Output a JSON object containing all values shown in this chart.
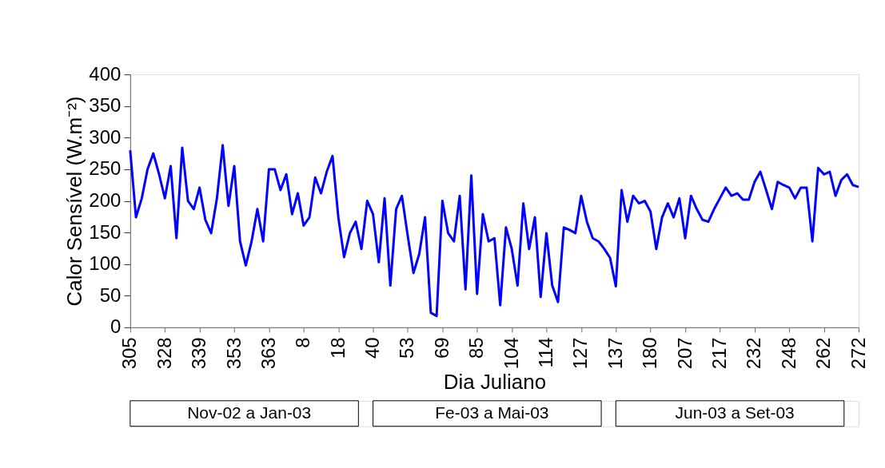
{
  "chart_data": {
    "type": "line",
    "xlabel": "Dia Juliano",
    "ylabel": "Calor Sensível (W.m⁻²)",
    "categories": [
      "305",
      null,
      null,
      null,
      null,
      null,
      "328",
      null,
      null,
      null,
      null,
      null,
      "339",
      null,
      null,
      null,
      null,
      null,
      "353",
      null,
      null,
      null,
      null,
      null,
      "363",
      null,
      null,
      null,
      null,
      null,
      "8",
      null,
      null,
      null,
      null,
      null,
      "18",
      null,
      null,
      null,
      null,
      null,
      "40",
      null,
      null,
      null,
      null,
      null,
      "53",
      null,
      null,
      null,
      null,
      null,
      "69",
      null,
      null,
      null,
      null,
      null,
      "85",
      null,
      null,
      null,
      null,
      null,
      "104",
      null,
      null,
      null,
      null,
      null,
      "114",
      null,
      null,
      null,
      null,
      null,
      "127",
      null,
      null,
      null,
      null,
      null,
      "137",
      null,
      null,
      null,
      null,
      null,
      "180",
      null,
      null,
      null,
      null,
      null,
      "207",
      null,
      null,
      null,
      null,
      null,
      "217",
      null,
      null,
      null,
      null,
      null,
      "232",
      null,
      null,
      null,
      null,
      null,
      "248",
      null,
      null,
      null,
      null,
      null,
      "262",
      null,
      null,
      null,
      null,
      null,
      "272"
    ],
    "series": [
      {
        "color": "#0000ff",
        "values": [
          280,
          174,
          204,
          250,
          275,
          242,
          204,
          255,
          141,
          284,
          200,
          187,
          221,
          170,
          149,
          204,
          288,
          192,
          255,
          136,
          98,
          136,
          187,
          136,
          250,
          250,
          217,
          242,
          179,
          212,
          161,
          174,
          237,
          212,
          246,
          271,
          174,
          111,
          149,
          167,
          124,
          200,
          179,
          103,
          204,
          66,
          187,
          208,
          145,
          86,
          116,
          174,
          23,
          18,
          200,
          149,
          136,
          208,
          60,
          240,
          53,
          179,
          136,
          141,
          35,
          158,
          124,
          66,
          196,
          124,
          174,
          48,
          149,
          66,
          40,
          158,
          154,
          149,
          208,
          167,
          141,
          136,
          124,
          110,
          65,
          217,
          167,
          208,
          196,
          200,
          183,
          124,
          174,
          196,
          174,
          204,
          141,
          208,
          187,
          170,
          167,
          187,
          204,
          221,
          208,
          212,
          202,
          202,
          230,
          246,
          217,
          187,
          230,
          225,
          221,
          204,
          221,
          221,
          136,
          252,
          242,
          246,
          208,
          233,
          242,
          225,
          222
        ]
      }
    ],
    "ylim": [
      0,
      400
    ],
    "yticks": [
      0,
      50,
      100,
      150,
      200,
      250,
      300,
      350,
      400
    ],
    "grid": false,
    "marker": "none",
    "line_style": "solid",
    "annotations": [
      "Nov-02 a Jan-03",
      "Fe-03 a Mai-03",
      "Jun-03 a Set-03"
    ]
  }
}
